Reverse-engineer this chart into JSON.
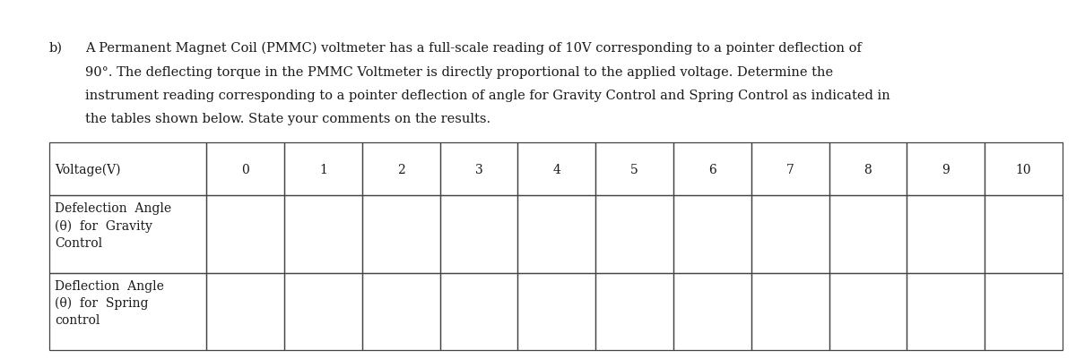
{
  "desc_text_b": "b)",
  "desc_line1": "A Permanent Magnet Coil (PMMC) voltmeter has a full-scale reading of 10V corresponding to a pointer deflection of",
  "desc_line2": "90°. The deflecting torque in the PMMC Voltmeter is directly proportional to the applied voltage. Determine the",
  "desc_line3": "instrument reading corresponding to a pointer deflection of angle for Gravity Control and Spring Control as indicated in",
  "desc_line4": "the tables shown below. State your comments on the results.",
  "voltage_label": "Voltage(V)",
  "voltage_values": [
    "0",
    "1",
    "2",
    "3",
    "4",
    "5",
    "6",
    "7",
    "8",
    "9",
    "10"
  ],
  "row1_label_line1": "Defelection  Angle",
  "row1_label_line2": "(θ)  for  Gravity",
  "row1_label_line3": "Control",
  "row2_label_line1": "Deflection  Angle",
  "row2_label_line2": "(θ)  for  Spring",
  "row2_label_line3": "control",
  "background_color": "#ffffff",
  "text_color": "#1a1a1a",
  "border_color": "#444444",
  "font_size": 10.0,
  "title_font_size": 10.5,
  "fig_width": 12.0,
  "fig_height": 4.02,
  "dpi": 100
}
